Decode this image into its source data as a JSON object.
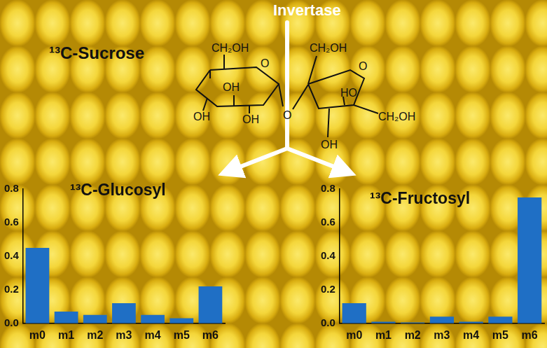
{
  "texts": {
    "enzyme": "Invertase",
    "substrate": "¹³C-Sucrose",
    "structure_labels": [
      "CH₂OH",
      "O",
      "OH",
      "OH",
      "OH",
      "O",
      "CH₂OH",
      "O",
      "HO",
      "CH₂OH",
      "OH"
    ]
  },
  "chart_data": [
    {
      "type": "bar",
      "title": "¹³C-Glucosyl",
      "categories": [
        "m0",
        "m1",
        "m2",
        "m3",
        "m4",
        "m5",
        "m6"
      ],
      "values": [
        0.45,
        0.07,
        0.05,
        0.12,
        0.05,
        0.03,
        0.22
      ],
      "color": "#1f6fc5",
      "ylim": [
        0,
        0.8
      ],
      "yticks": [
        {
          "value": 0,
          "label": "0.0"
        },
        0.2,
        0.4,
        0.6,
        0.8
      ],
      "grid": false
    },
    {
      "type": "bar",
      "title": "¹³C-Fructosyl",
      "categories": [
        "m0",
        "m1",
        "m2",
        "m3",
        "m4",
        "m5",
        "m6"
      ],
      "values": [
        0.12,
        0.01,
        0.005,
        0.04,
        0.01,
        0.04,
        0.75
      ],
      "color": "#1f6fc5",
      "ylim": [
        0,
        0.8
      ],
      "yticks": [
        {
          "value": 0,
          "label": "0.0"
        },
        0.2,
        0.4,
        0.6,
        0.8
      ],
      "grid": false
    }
  ]
}
